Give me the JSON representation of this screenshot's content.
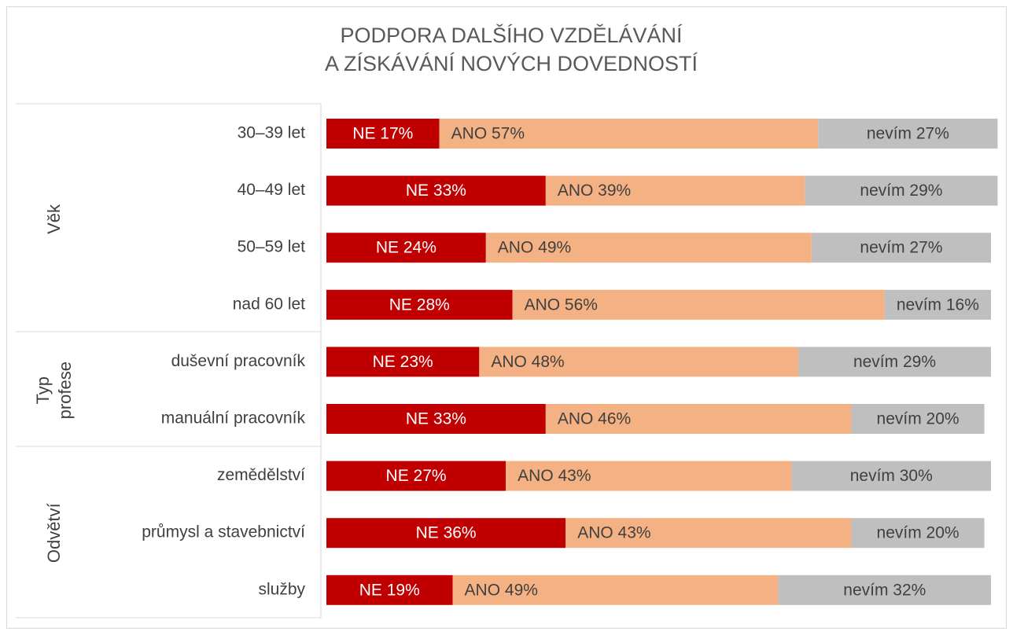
{
  "chart_data": {
    "type": "stacked-bar-horizontal",
    "title": [
      "PODPORA DALŠÍHO VZDĚLÁVÁNÍ",
      "A ZÍSKÁVÁNÍ NOVÝCH DOVEDNOSTÍ"
    ],
    "categories": [
      "30–39 let",
      "40–49 let",
      "50–59 let",
      "nad 60 let",
      "duševní pracovník",
      "manuální pracovník",
      "zemědělství",
      "průmysl a stavebnictví",
      "služby"
    ],
    "groups": [
      {
        "label": [
          "Věk"
        ],
        "from": 0,
        "to": 3
      },
      {
        "label": [
          "Typ",
          "profese"
        ],
        "from": 4,
        "to": 5
      },
      {
        "label": [
          "Odvětví"
        ],
        "from": 6,
        "to": 8
      }
    ],
    "series": [
      {
        "color": "#c00000",
        "values": [
          17,
          33,
          24,
          28,
          23,
          33,
          27,
          36,
          19
        ],
        "value_labels": [
          "NE 17%",
          "NE 33%",
          "NE 24%",
          "NE 28%",
          "NE 23%",
          "NE 33%",
          "NE 27%",
          "NE 36%",
          "NE 19%"
        ]
      },
      {
        "color": "#f4b183",
        "values": [
          57,
          39,
          49,
          56,
          48,
          46,
          43,
          43,
          49
        ],
        "value_labels": [
          "ANO 57%",
          "ANO 39%",
          "ANO 49%",
          "ANO 56%",
          "ANO 48%",
          "ANO 46%",
          "ANO 43%",
          "ANO 43%",
          "ANO 49%"
        ]
      },
      {
        "color": "#bfbfbf",
        "values": [
          27,
          29,
          27,
          16,
          29,
          20,
          30,
          20,
          32
        ],
        "value_labels": [
          "nevím 27%",
          "nevím 29%",
          "nevím 27%",
          "nevím 16%",
          "nevím 29%",
          "nevím 20%",
          "nevím 30%",
          "nevím 20%",
          "nevím 32%"
        ]
      }
    ],
    "xlim": [
      0,
      100
    ]
  }
}
